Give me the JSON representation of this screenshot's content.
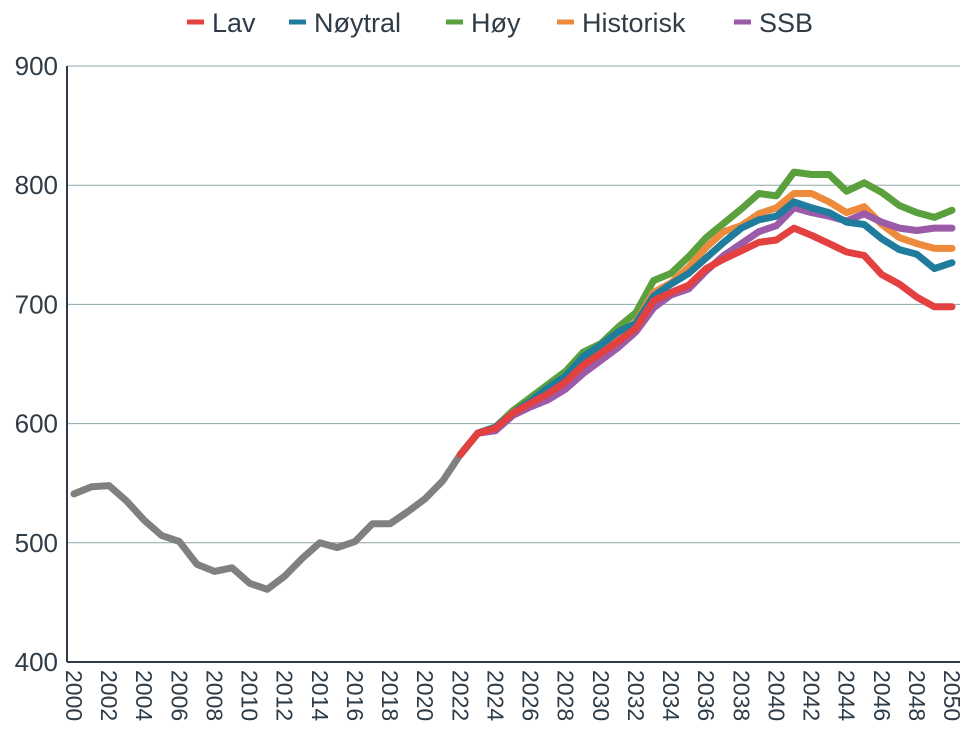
{
  "chart_data": {
    "type": "line",
    "title": "",
    "xlabel": "",
    "ylabel": "",
    "xlim": [
      2000,
      2050
    ],
    "ylim": [
      400,
      900
    ],
    "y_ticks": [
      "900",
      "800",
      "700",
      "600",
      "500",
      "400"
    ],
    "x_ticks": [
      "2000",
      "2002",
      "2004",
      "2006",
      "2008",
      "2010",
      "2012",
      "2014",
      "2016",
      "2018",
      "2020",
      "2022",
      "2024",
      "2026",
      "2028",
      "2030",
      "2032",
      "2034",
      "2036",
      "2038",
      "2040",
      "2042",
      "2044",
      "2046",
      "2048",
      "2050"
    ],
    "grid": "horizontal",
    "legend_position": "top",
    "legend": [
      "Lav",
      "Nøytral",
      "Høy",
      "Historisk",
      "SSB"
    ],
    "historical": {
      "color": "#808080",
      "x": [
        2000,
        2001,
        2002,
        2003,
        2004,
        2005,
        2006,
        2007,
        2008,
        2009,
        2010,
        2011,
        2012,
        2013,
        2014,
        2015,
        2016,
        2017,
        2018,
        2019,
        2020,
        2021,
        2022
      ],
      "values": [
        541,
        547,
        548,
        535,
        519,
        506,
        501,
        482,
        476,
        479,
        466,
        461,
        472,
        487,
        500,
        496,
        501,
        516,
        516,
        526,
        537,
        552,
        574
      ]
    },
    "series": [
      {
        "name": "Høy",
        "color": "#5aa03c",
        "x": [
          2022,
          2023,
          2024,
          2025,
          2026,
          2027,
          2028,
          2029,
          2030,
          2031,
          2032,
          2033,
          2034,
          2035,
          2036,
          2037,
          2038,
          2039,
          2040,
          2041,
          2042,
          2043,
          2044,
          2045,
          2046,
          2047,
          2048,
          2049,
          2050
        ],
        "values": [
          574,
          592,
          597,
          611,
          622,
          633,
          644,
          660,
          667,
          681,
          693,
          720,
          726,
          740,
          756,
          768,
          780,
          793,
          791,
          811,
          809,
          809,
          795,
          802,
          794,
          783,
          777,
          773,
          779
        ]
      },
      {
        "name": "Historisk",
        "color": "#ee8a3c",
        "x": [
          2022,
          2023,
          2024,
          2025,
          2026,
          2027,
          2028,
          2029,
          2030,
          2031,
          2032,
          2033,
          2034,
          2035,
          2036,
          2037,
          2038,
          2039,
          2040,
          2041,
          2042,
          2043,
          2044,
          2045,
          2046,
          2047,
          2048,
          2049,
          2050
        ],
        "values": [
          574,
          592,
          596,
          609,
          618,
          629,
          638,
          655,
          664,
          674,
          685,
          710,
          718,
          731,
          748,
          761,
          766,
          776,
          781,
          793,
          793,
          786,
          777,
          782,
          767,
          756,
          751,
          747,
          747
        ]
      },
      {
        "name": "SSB",
        "color": "#9b5ba8",
        "x": [
          2022,
          2023,
          2024,
          2025,
          2026,
          2027,
          2028,
          2029,
          2030,
          2031,
          2032,
          2033,
          2034,
          2035,
          2036,
          2037,
          2038,
          2039,
          2040,
          2041,
          2042,
          2043,
          2044,
          2045,
          2046,
          2047,
          2048,
          2049,
          2050
        ],
        "values": [
          574,
          592,
          594,
          607,
          614,
          620,
          629,
          642,
          653,
          664,
          677,
          697,
          708,
          713,
          728,
          741,
          751,
          761,
          766,
          781,
          777,
          774,
          770,
          776,
          769,
          764,
          762,
          764,
          764
        ]
      },
      {
        "name": "Nøytral",
        "color": "#1f7c9c",
        "x": [
          2022,
          2023,
          2024,
          2025,
          2026,
          2027,
          2028,
          2029,
          2030,
          2031,
          2032,
          2033,
          2034,
          2035,
          2036,
          2037,
          2038,
          2039,
          2040,
          2041,
          2042,
          2043,
          2044,
          2045,
          2046,
          2047,
          2048,
          2049,
          2050
        ],
        "values": [
          574,
          592,
          597,
          609,
          619,
          630,
          640,
          656,
          666,
          677,
          684,
          707,
          717,
          726,
          739,
          752,
          764,
          771,
          774,
          786,
          781,
          777,
          769,
          767,
          755,
          746,
          742,
          730,
          735
        ]
      },
      {
        "name": "Lav",
        "color": "#e34040",
        "x": [
          2022,
          2023,
          2024,
          2025,
          2026,
          2027,
          2028,
          2029,
          2030,
          2031,
          2032,
          2033,
          2034,
          2035,
          2036,
          2037,
          2038,
          2039,
          2040,
          2041,
          2042,
          2043,
          2044,
          2045,
          2046,
          2047,
          2048,
          2049,
          2050
        ],
        "values": [
          574,
          592,
          596,
          609,
          617,
          625,
          635,
          649,
          659,
          669,
          680,
          703,
          710,
          716,
          730,
          738,
          745,
          752,
          754,
          764,
          758,
          751,
          744,
          741,
          725,
          717,
          706,
          698,
          698
        ]
      }
    ]
  }
}
